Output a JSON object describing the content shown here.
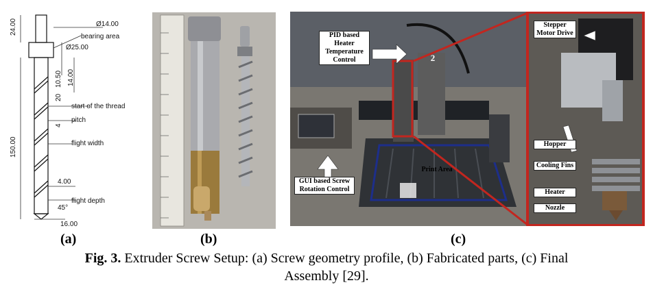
{
  "panel_a": {
    "dims": {
      "top": "24.00",
      "dia_top": "Ø14.00",
      "bearing": "bearing area",
      "dia_bearing": "Ø25.00",
      "d_1050": "10.50",
      "d_1400": "14.00",
      "d_20": "20",
      "start_thread": "start of the thread",
      "pitch": "pitch",
      "d_4": "4",
      "flight_width": "flight width",
      "d_150": "150.00",
      "d_400": "4.00",
      "flight_depth": "flight depth",
      "angle": "45°",
      "d_1600": "16.00"
    }
  },
  "panel_c": {
    "labels": {
      "pid": "PID based Heater Temperature Control",
      "gui": "GUI based Screw Rotation Control",
      "print_area": "Print Area",
      "stepper": "Stepper Motor Drive",
      "hopper": "Hopper",
      "cooling": "Cooling Fins",
      "heater": "Heater",
      "nozzle": "Nozzle",
      "axis_num": "2"
    }
  },
  "sublabels": {
    "a": "(a)",
    "b": "(b)",
    "c": "(c)"
  },
  "caption": {
    "prefix": "Fig. 3.",
    "line1": " Extruder Screw Setup: (a) Screw geometry profile, (b) Fabricated parts, (c) Final",
    "line2": "Assembly [29]."
  }
}
